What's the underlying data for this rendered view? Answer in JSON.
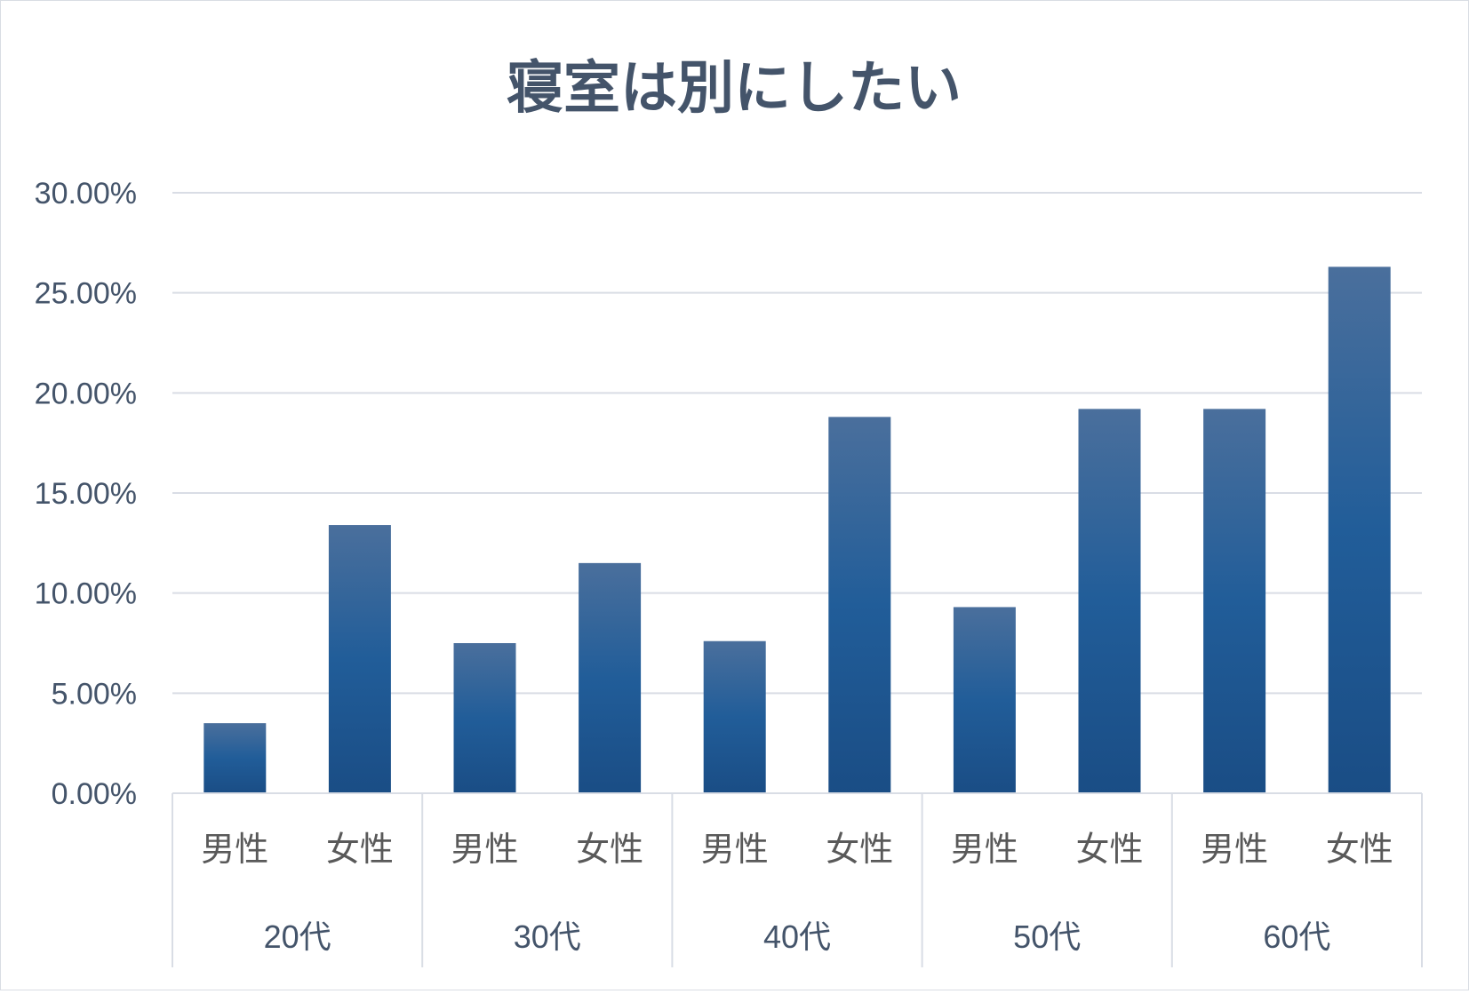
{
  "chart_data": {
    "type": "bar",
    "title": "寝室は別にしたい",
    "xlabel": "",
    "ylabel": "",
    "ylim": [
      0,
      30
    ],
    "y_ticks": [
      "0.00%",
      "5.00%",
      "10.00%",
      "15.00%",
      "20.00%",
      "25.00%",
      "30.00%"
    ],
    "y_tick_values": [
      0,
      5,
      10,
      15,
      20,
      25,
      30
    ],
    "grid": true,
    "legend": "none",
    "groups": [
      {
        "label": "20代",
        "categories": [
          "男性",
          "女性"
        ],
        "values": [
          3.5,
          13.4
        ]
      },
      {
        "label": "30代",
        "categories": [
          "男性",
          "女性"
        ],
        "values": [
          7.5,
          11.5
        ]
      },
      {
        "label": "40代",
        "categories": [
          "男性",
          "女性"
        ],
        "values": [
          7.6,
          18.8
        ]
      },
      {
        "label": "50代",
        "categories": [
          "男性",
          "女性"
        ],
        "values": [
          9.3,
          19.2
        ]
      },
      {
        "label": "60代",
        "categories": [
          "男性",
          "女性"
        ],
        "values": [
          19.2,
          26.3
        ]
      }
    ],
    "colors": {
      "bar_top": "#4a6f9c",
      "bar_mid": "#215d99",
      "bar_bottom": "#1a4d85",
      "grid": "#d9dde5",
      "text": "#44546a"
    }
  }
}
